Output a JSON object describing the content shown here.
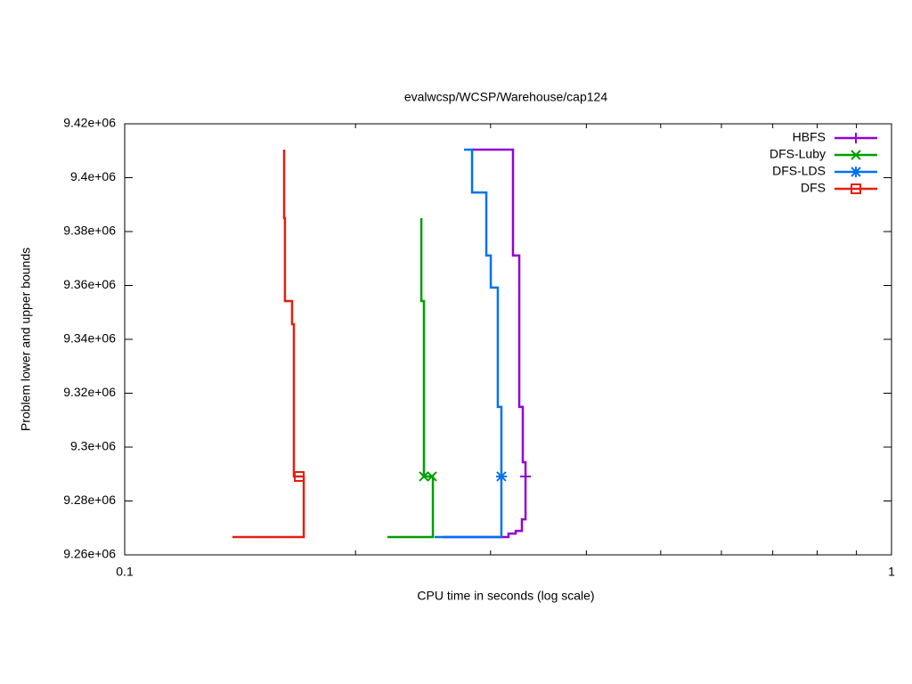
{
  "chart_data": {
    "type": "line",
    "title": "evalwcsp/WCSP/Warehouse/cap124",
    "x_label": "CPU time in seconds (log scale)",
    "y_label": "Problem lower and upper bounds",
    "x_log": true,
    "xlim": [
      0.1,
      1
    ],
    "xticks": [
      0.1,
      1
    ],
    "x_minor_ticks": [
      0.2,
      0.3,
      0.4,
      0.5,
      0.6,
      0.7,
      0.8,
      0.9
    ],
    "ylim": [
      9260000,
      9420000
    ],
    "yticks": [
      {
        "value": 9260000,
        "label": "9.26e+06"
      },
      {
        "value": 9280000,
        "label": "9.28e+06"
      },
      {
        "value": 9300000,
        "label": "9.3e+06"
      },
      {
        "value": 9320000,
        "label": "9.32e+06"
      },
      {
        "value": 9340000,
        "label": "9.34e+06"
      },
      {
        "value": 9360000,
        "label": "9.36e+06"
      },
      {
        "value": 9380000,
        "label": "9.38e+06"
      },
      {
        "value": 9400000,
        "label": "9.4e+06"
      },
      {
        "value": 9420000,
        "label": "9.42e+06"
      }
    ],
    "legend": "top-right",
    "series": [
      {
        "name": "HBFS",
        "color": "#9400d3",
        "marker": "plus",
        "x": [
          0.2838,
          0.3209,
          0.3209,
          0.327,
          0.327,
          0.3305,
          0.3305,
          0.3332,
          0.3332,
          0.3296,
          0.3296,
          0.3235,
          0.3235,
          0.3166,
          0.3166,
          0.2598
        ],
        "values": [
          9410400,
          9410400,
          9371100,
          9371100,
          9314900,
          9314900,
          9294400,
          9294400,
          9273200,
          9273200,
          9268900,
          9268900,
          9267900,
          9267900,
          9266600,
          9266600
        ],
        "point_x": [
          0.3332
        ],
        "point_y": [
          9289100
        ]
      },
      {
        "name": "DFS-Luby",
        "color": "#009e00",
        "marker": "cross",
        "x": [
          0.2437,
          0.2437,
          0.2456,
          0.2456,
          0.2523,
          0.2523,
          0.2201
        ],
        "values": [
          9385000,
          9354200,
          9354200,
          9289100,
          9289100,
          9266600,
          9266600
        ],
        "point_x": [
          0.2456,
          0.2516
        ],
        "point_y": [
          9289100,
          9289100
        ]
      },
      {
        "name": "DFS-LDS",
        "color": "#0072f2",
        "marker": "star",
        "x": [
          0.277,
          0.2838,
          0.2838,
          0.2962,
          0.2962,
          0.3002,
          0.3002,
          0.3066,
          0.3066,
          0.3099,
          0.3099,
          0.2536
        ],
        "values": [
          9410400,
          9410400,
          9394500,
          9394500,
          9371100,
          9371100,
          9359200,
          9359200,
          9314900,
          9314900,
          9266600,
          9266600
        ],
        "point_x": [
          0.3099
        ],
        "point_y": [
          9289100
        ]
      },
      {
        "name": "DFS",
        "color": "#e51e10",
        "marker": "square",
        "x": [
          0.1614,
          0.1614,
          0.1618,
          0.1618,
          0.1653,
          0.1653,
          0.1662,
          0.1662,
          0.1712,
          0.1712,
          0.1382
        ],
        "values": [
          9410400,
          9385000,
          9385000,
          9354200,
          9354200,
          9345600,
          9345600,
          9289100,
          9289100,
          9266600,
          9266600
        ],
        "point_x": [
          0.1689
        ],
        "point_y": [
          9289100
        ]
      }
    ]
  }
}
